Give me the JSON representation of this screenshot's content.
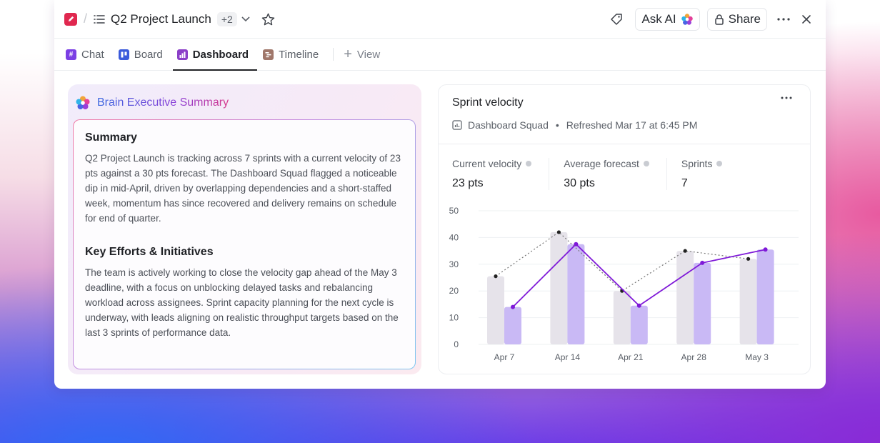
{
  "header": {
    "title": "Q2 Project Launch",
    "extra_count": "+2",
    "ask_ai_label": "Ask AI",
    "share_label": "Share"
  },
  "tabs": [
    {
      "label": "Chat",
      "icon": "hash-icon",
      "color": "#7b3fe4"
    },
    {
      "label": "Board",
      "icon": "board-icon",
      "color": "#3b5bdb"
    },
    {
      "label": "Dashboard",
      "icon": "dashboard-icon",
      "color": "#8b3fc8",
      "active": true
    },
    {
      "label": "Timeline",
      "icon": "timeline-icon",
      "color": "#a0776a"
    }
  ],
  "add_view_label": "View",
  "summary": {
    "heading": "Brain Executive Summary",
    "sections": [
      {
        "title": "Summary",
        "text": "Q2 Project Launch is tracking across 7 sprints with a current velocity of 23 pts against a 30 pts forecast. The Dashboard Squad flagged a noticeable dip in mid-April, driven by overlapping dependencies and a short-staffed week, momentum has since recovered and delivery remains on schedule for end of quarter."
      },
      {
        "title": "Key Efforts & Initiatives",
        "text": "The team is actively working to close the velocity gap ahead of the May 3 deadline, with a focus on unblocking delayed tasks and rebalancing workload across assignees. Sprint capacity planning for the next cycle is underway, with leads aligning on realistic throughput targets based on the last 3 sprints of performance data."
      }
    ]
  },
  "velocity_card": {
    "title": "Sprint velocity",
    "team": "Dashboard Squad",
    "refreshed": "Refreshed Mar 17 at 6:45 PM",
    "metrics": [
      {
        "label": "Current velocity",
        "value": "23 pts"
      },
      {
        "label": "Average forecast",
        "value": "30 pts"
      },
      {
        "label": "Sprints",
        "value": "7"
      }
    ]
  },
  "chart_data": {
    "type": "bar",
    "categories": [
      "Apr 7",
      "Apr 14",
      "Apr 21",
      "Apr 28",
      "May 3"
    ],
    "ylim": [
      0,
      50
    ],
    "yticks": [
      0,
      10,
      20,
      30,
      40,
      50
    ],
    "series": [
      {
        "values": [
          25.5,
          42,
          20,
          35,
          32
        ],
        "color": "#e6e3ea",
        "line_color": "#777777",
        "line_style": "dotted"
      },
      {
        "values": [
          14,
          37.5,
          14.5,
          30.5,
          35.5
        ],
        "color": "#c9b9f5",
        "line_color": "#7f19d8",
        "line_style": "solid"
      }
    ]
  }
}
